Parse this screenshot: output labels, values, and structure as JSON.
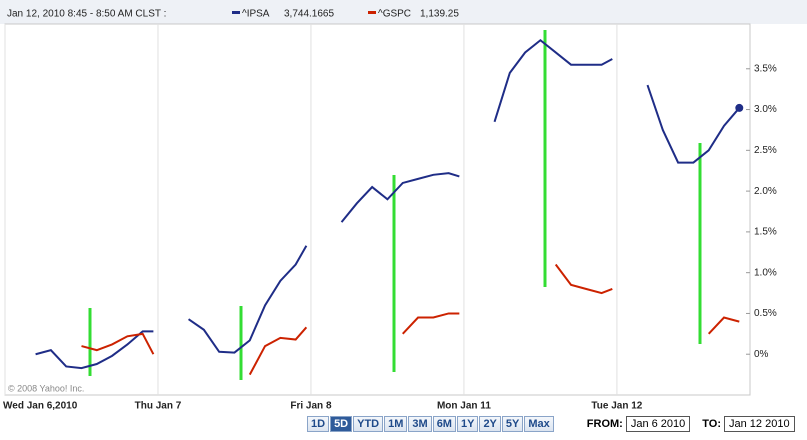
{
  "chart_data": {
    "type": "line",
    "title": "Jan 12, 2010 8:45 - 8:50 AM CLST :",
    "copyright": "© 2008 Yahoo! Inc.",
    "x": [
      0.2,
      0.3,
      0.4,
      0.5,
      0.6,
      0.7,
      0.8,
      0.9,
      0.97,
      1.0,
      1.2,
      1.3,
      1.4,
      1.5,
      1.6,
      1.7,
      1.8,
      1.9,
      1.97,
      2.0,
      2.2,
      2.3,
      2.4,
      2.5,
      2.6,
      2.7,
      2.8,
      2.9,
      2.97,
      3.0,
      3.2,
      3.3,
      3.4,
      3.5,
      3.6,
      3.7,
      3.8,
      3.9,
      3.97,
      4.0,
      4.2,
      4.3,
      4.4,
      4.5,
      4.6,
      4.7,
      4.8
    ],
    "series": [
      {
        "name": "^IPSA",
        "quote": "3,744.1665",
        "color": "#1f2d87",
        "values": [
          0.0,
          0.05,
          -0.15,
          -0.17,
          -0.12,
          -0.02,
          0.12,
          0.28,
          0.28,
          null,
          0.43,
          0.3,
          0.03,
          0.02,
          0.17,
          0.6,
          0.9,
          1.1,
          1.33,
          null,
          1.62,
          1.85,
          2.05,
          1.9,
          2.1,
          2.15,
          2.2,
          2.22,
          2.18,
          null,
          2.85,
          3.45,
          3.7,
          3.85,
          3.7,
          3.55,
          3.55,
          3.55,
          3.62,
          null,
          3.3,
          2.75,
          2.35,
          2.35,
          2.5,
          2.8,
          3.02
        ]
      },
      {
        "name": "^GSPC",
        "quote": "1,139.25",
        "color": "#cc2200",
        "values": [
          null,
          null,
          null,
          0.1,
          0.05,
          0.12,
          0.22,
          0.25,
          0.0,
          null,
          null,
          null,
          null,
          null,
          -0.25,
          0.1,
          0.2,
          0.18,
          0.33,
          null,
          null,
          null,
          null,
          null,
          0.25,
          0.45,
          0.45,
          0.5,
          0.5,
          null,
          null,
          null,
          null,
          null,
          1.1,
          0.85,
          0.8,
          0.75,
          0.8,
          null,
          null,
          null,
          null,
          null,
          0.25,
          0.45,
          0.4
        ]
      }
    ],
    "xlim": [
      0,
      4.87
    ],
    "xticks": [
      {
        "value": 0,
        "label": "Wed Jan 6,2010"
      },
      {
        "value": 1,
        "label": "Thu Jan 7"
      },
      {
        "value": 2,
        "label": "Fri Jan 8"
      },
      {
        "value": 3,
        "label": "Mon Jan 11"
      },
      {
        "value": 4,
        "label": "Tue Jan 12"
      }
    ],
    "ylim": [
      -0.5,
      4.0
    ],
    "yticks": [
      {
        "value": 0,
        "label": "0%"
      },
      {
        "value": 0.5,
        "label": "0.5%"
      },
      {
        "value": 1,
        "label": "1.0%"
      },
      {
        "value": 1.5,
        "label": "1.5%"
      },
      {
        "value": 2,
        "label": "2.0%"
      },
      {
        "value": 2.5,
        "label": "2.5%"
      },
      {
        "value": 3,
        "label": "3.0%"
      },
      {
        "value": 3.5,
        "label": "3.5%"
      }
    ],
    "grid": true
  },
  "controls": {
    "ranges": [
      "1D",
      "5D",
      "YTD",
      "1M",
      "3M",
      "6M",
      "1Y",
      "2Y",
      "5Y",
      "Max"
    ],
    "selected": "5D",
    "from_label": "FROM:",
    "from_value": "Jan 6 2010",
    "to_label": "TO:",
    "to_value": "Jan 12 2010"
  }
}
